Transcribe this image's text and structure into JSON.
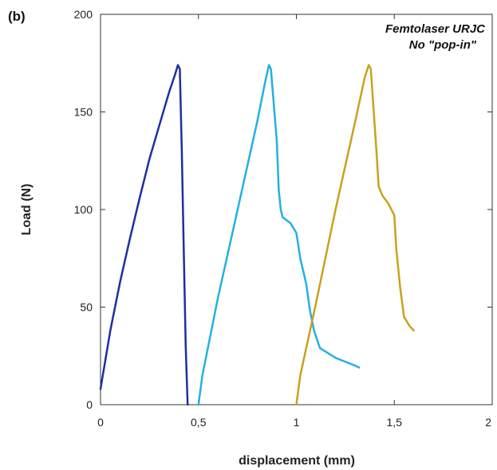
{
  "chart_data": {
    "type": "line",
    "panel_label": "(b)",
    "annotation_lines": [
      "Femtolaser URJC",
      "No \"pop-in\""
    ],
    "xlabel": "displacement (mm)",
    "ylabel": "Load (N)",
    "xlim": [
      0,
      2
    ],
    "ylim": [
      0,
      200
    ],
    "x_ticks": [
      0,
      0.5,
      1,
      1.5,
      2
    ],
    "x_tick_labels": [
      "0",
      "0,5",
      "1",
      "1,5",
      "2"
    ],
    "y_ticks": [
      0,
      50,
      100,
      150,
      200
    ],
    "y_tick_labels": [
      "0",
      "50",
      "100",
      "150",
      "200"
    ],
    "grid": false,
    "series": [
      {
        "color": "#1f2fa0",
        "x": [
          0,
          0.005,
          0.02,
          0.05,
          0.1,
          0.15,
          0.2,
          0.25,
          0.3,
          0.35,
          0.38,
          0.395,
          0.405,
          0.415,
          0.425,
          0.435,
          0.445
        ],
        "y": [
          8,
          11,
          20,
          38,
          63,
          85,
          106,
          126,
          143,
          160,
          169,
          174,
          172,
          130,
          80,
          30,
          0
        ]
      },
      {
        "color": "#23b1e0",
        "x": [
          0.5,
          0.52,
          0.6,
          0.7,
          0.8,
          0.84,
          0.86,
          0.87,
          0.88,
          0.9,
          0.91,
          0.92,
          0.93,
          0.97,
          1.0,
          1.02,
          1.05,
          1.07,
          1.09,
          1.12,
          1.2,
          1.25,
          1.3,
          1.32
        ],
        "y": [
          0,
          15,
          55,
          100,
          145,
          165,
          174,
          172,
          160,
          135,
          110,
          100,
          96,
          93,
          88,
          75,
          62,
          48,
          38,
          29,
          24,
          22,
          20,
          19
        ]
      },
      {
        "color": "#c8a21c",
        "x": [
          1.0,
          1.02,
          1.1,
          1.2,
          1.3,
          1.35,
          1.37,
          1.38,
          1.39,
          1.41,
          1.42,
          1.44,
          1.47,
          1.5,
          1.51,
          1.53,
          1.55,
          1.58,
          1.6
        ],
        "y": [
          0,
          15,
          52,
          100,
          145,
          168,
          174,
          172,
          158,
          128,
          112,
          107,
          103,
          97,
          80,
          60,
          45,
          40,
          38
        ]
      }
    ]
  }
}
